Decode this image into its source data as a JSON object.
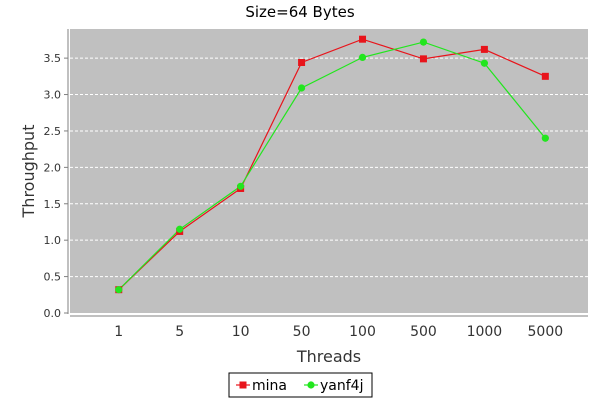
{
  "chart_data": {
    "type": "line",
    "title": "Size=64 Bytes",
    "xlabel": "Threads",
    "ylabel": "Throughput",
    "categories": [
      "1",
      "5",
      "10",
      "50",
      "100",
      "500",
      "1000",
      "5000"
    ],
    "ylim": [
      0.0,
      3.9
    ],
    "yticks": [
      "0.0",
      "0.5",
      "1.0",
      "1.5",
      "2.0",
      "2.5",
      "3.0",
      "3.5"
    ],
    "grid": true,
    "legend_position": "bottom-center",
    "series": [
      {
        "name": "mina",
        "color": "#e8141b",
        "marker": "square",
        "values": [
          0.32,
          1.12,
          1.71,
          3.44,
          3.76,
          3.49,
          3.62,
          3.25
        ]
      },
      {
        "name": "yanf4j",
        "color": "#22e61e",
        "marker": "circle",
        "values": [
          0.32,
          1.15,
          1.74,
          3.09,
          3.51,
          3.72,
          3.43,
          2.4
        ]
      }
    ]
  },
  "colors": {
    "plot_background": "#c0c0c0",
    "grid": "#ffffff",
    "axis": "#808080",
    "text": "#333333"
  }
}
